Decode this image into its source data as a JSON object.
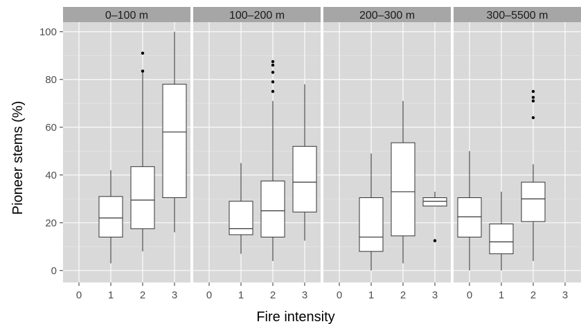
{
  "chart_data": {
    "type": "boxplot",
    "xlabel": "Fire intensity",
    "ylabel": "Pioneer stems (%)",
    "ylim": [
      -5,
      104
    ],
    "yticks": [
      0,
      20,
      40,
      60,
      80,
      100
    ],
    "categories": [
      "0",
      "1",
      "2",
      "3"
    ],
    "grid": true,
    "legend": "none",
    "colors": {
      "panel_bg": "#d9d9d9",
      "strip_bg": "#a6a6a6",
      "grid_major": "#ffffff",
      "grid_minor": "#e6e6e6",
      "box_fill": "#ffffff",
      "box_line": "#333333",
      "outlier": "#000000"
    },
    "panels": [
      {
        "label": "0–100 m",
        "boxes": [
          {
            "x": "1",
            "min": 3,
            "q1": 14,
            "median": 22,
            "q3": 31,
            "max": 42,
            "outliers": []
          },
          {
            "x": "2",
            "min": 8,
            "q1": 17.5,
            "median": 29.5,
            "q3": 43.5,
            "max": 83,
            "outliers": [
              83.5,
              91
            ]
          },
          {
            "x": "3",
            "min": 16,
            "q1": 30.5,
            "median": 58,
            "q3": 78,
            "max": 100,
            "outliers": []
          }
        ]
      },
      {
        "label": "100–200 m",
        "boxes": [
          {
            "x": "1",
            "min": 7,
            "q1": 15,
            "median": 17.5,
            "q3": 29,
            "max": 45,
            "outliers": []
          },
          {
            "x": "2",
            "min": 4,
            "q1": 14,
            "median": 25,
            "q3": 37.5,
            "max": 71,
            "outliers": [
              75,
              79,
              83,
              86,
              87.5
            ]
          },
          {
            "x": "3",
            "min": 12.5,
            "q1": 24.5,
            "median": 37,
            "q3": 52,
            "max": 78,
            "outliers": []
          }
        ]
      },
      {
        "label": "200–300 m",
        "boxes": [
          {
            "x": "1",
            "min": 0,
            "q1": 8,
            "median": 14,
            "q3": 30.5,
            "max": 49,
            "outliers": []
          },
          {
            "x": "2",
            "min": 3,
            "q1": 14.5,
            "median": 33,
            "q3": 53.5,
            "max": 71,
            "outliers": []
          },
          {
            "x": "3",
            "min": 27,
            "q1": 27,
            "median": 29,
            "q3": 30.5,
            "max": 33,
            "outliers": [
              12.5
            ]
          }
        ]
      },
      {
        "label": "300–5500 m",
        "boxes": [
          {
            "x": "0",
            "min": 0,
            "q1": 14,
            "median": 22.5,
            "q3": 30.5,
            "max": 50,
            "outliers": []
          },
          {
            "x": "1",
            "min": 0,
            "q1": 7,
            "median": 12,
            "q3": 19.5,
            "max": 33,
            "outliers": []
          },
          {
            "x": "2",
            "min": 4,
            "q1": 20.5,
            "median": 30,
            "q3": 37,
            "max": 44.5,
            "outliers": [
              64,
              71,
              72.5,
              75
            ]
          }
        ]
      }
    ]
  }
}
